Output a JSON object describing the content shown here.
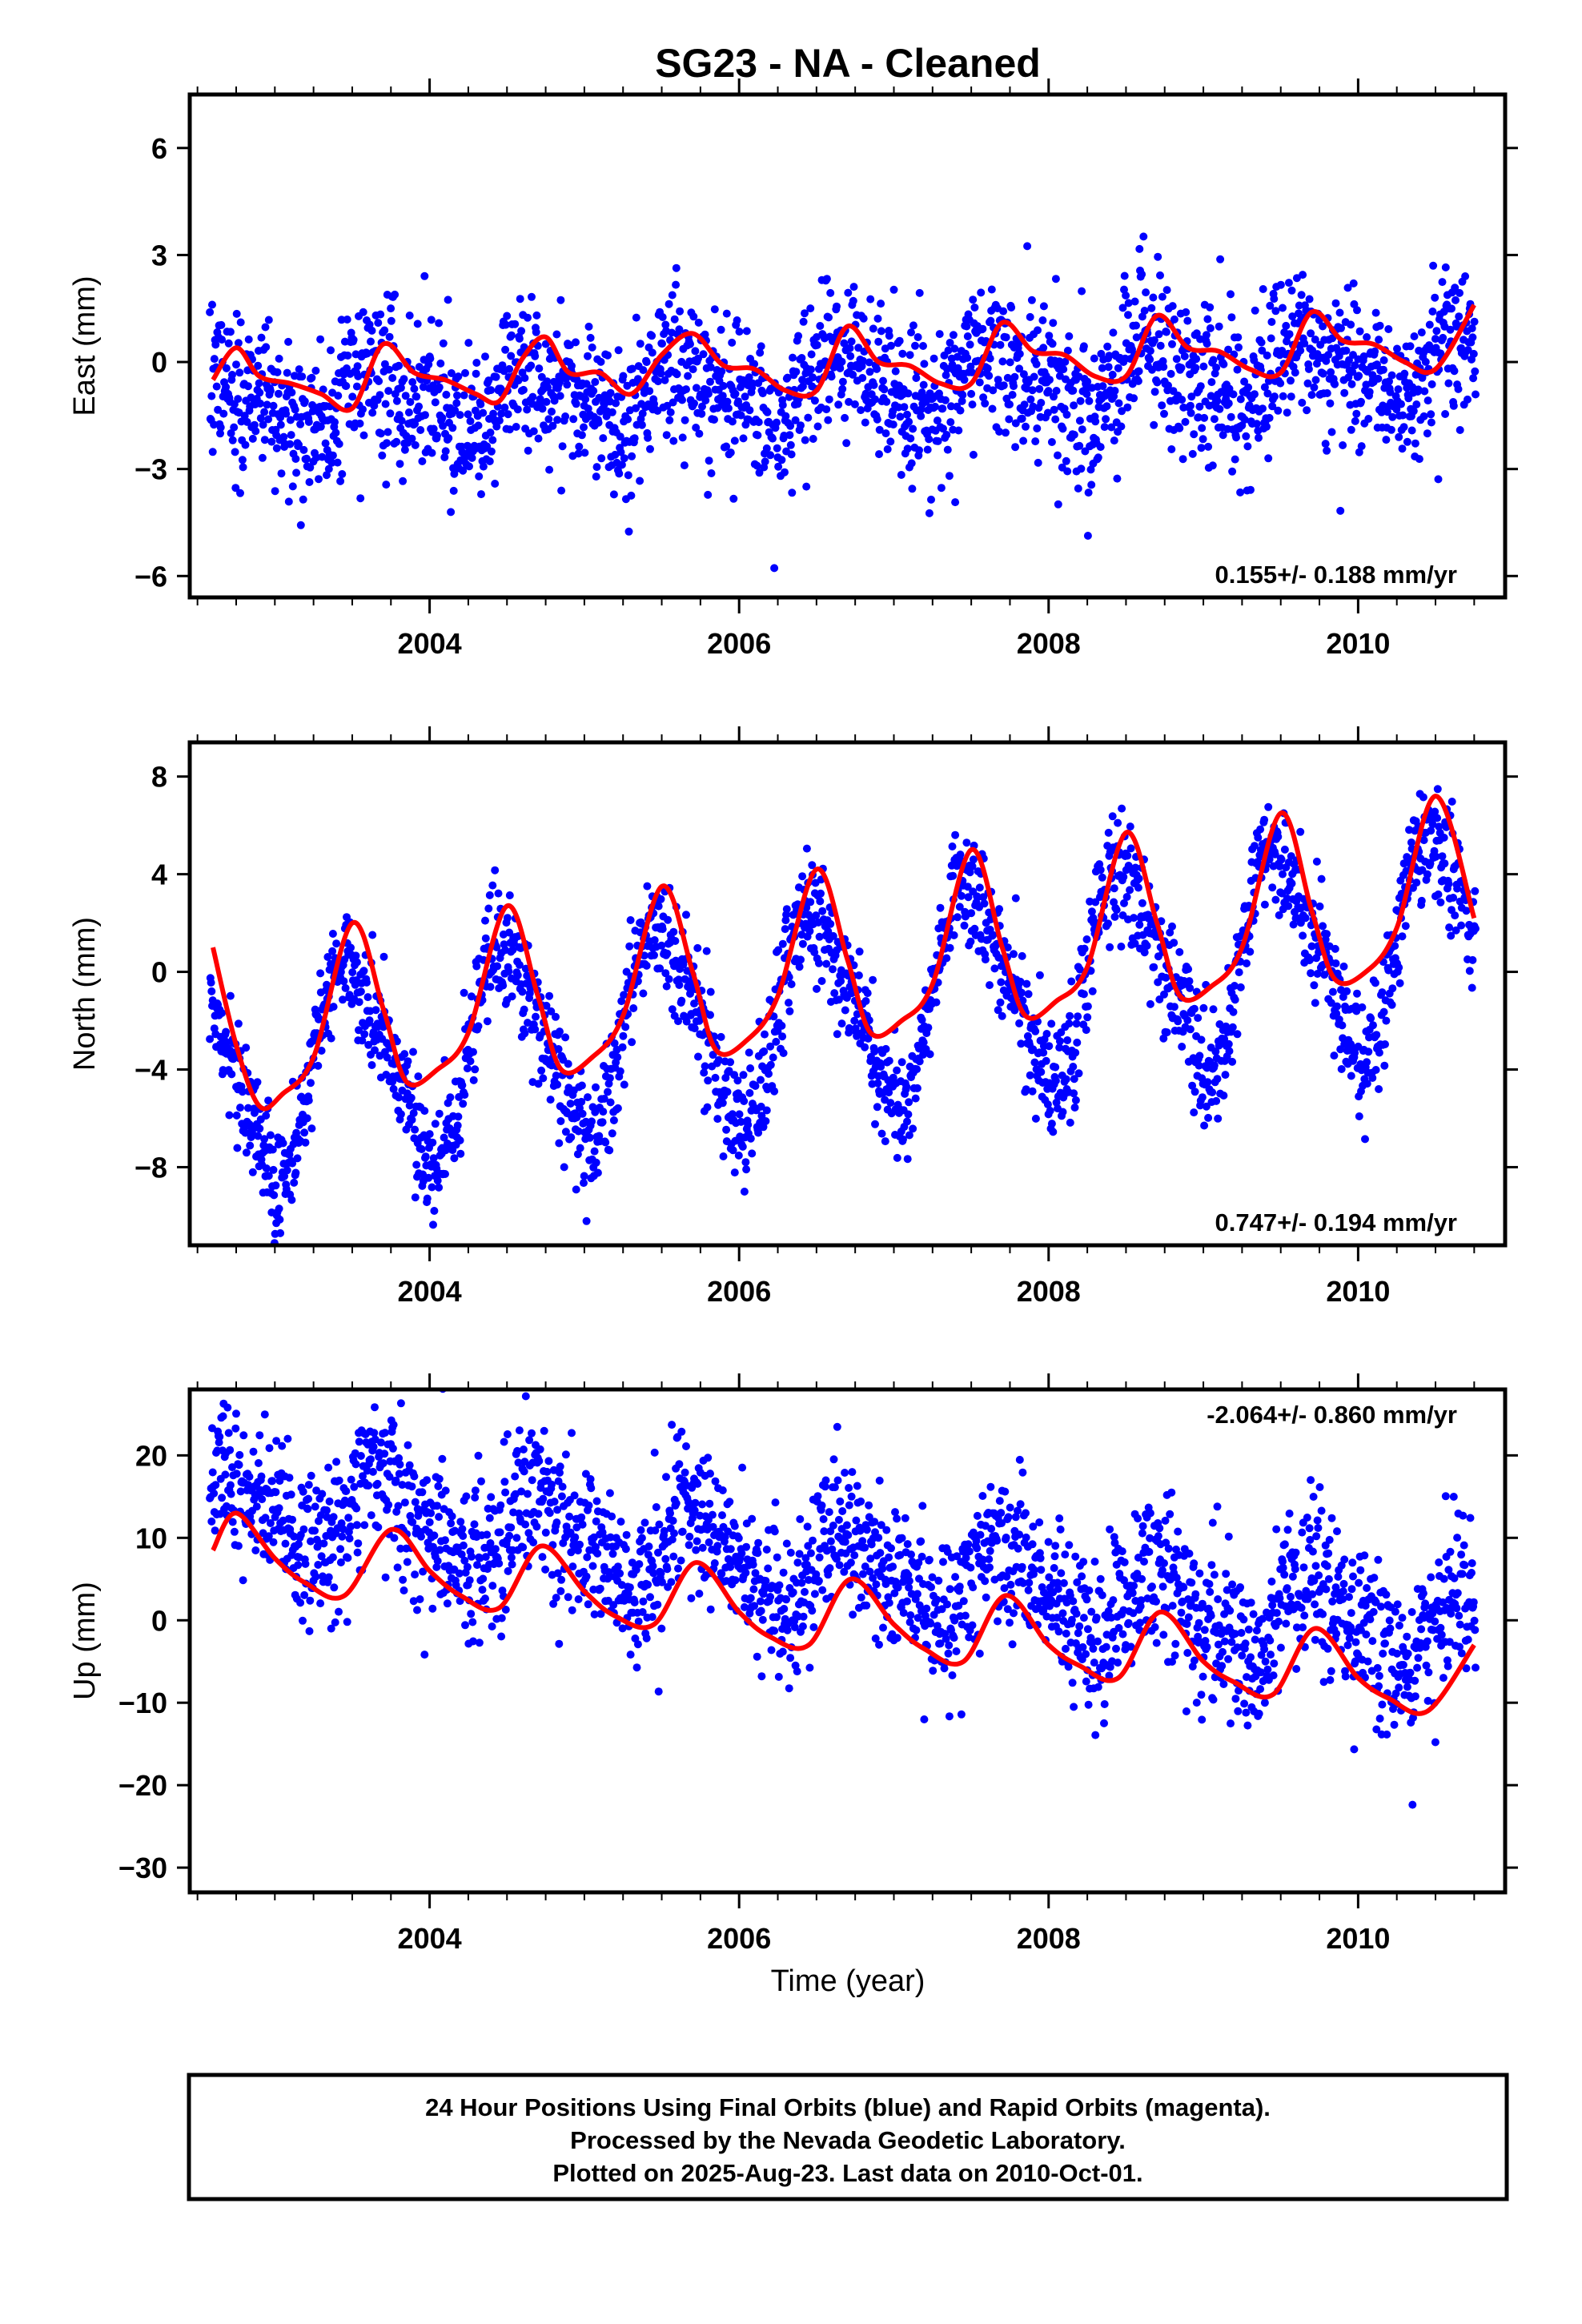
{
  "chart_data": {
    "title": "SG23  - NA - Cleaned",
    "xlabel": "Time (year)",
    "x_ticks": [
      "2004",
      "2006",
      "2008",
      "2010"
    ],
    "xlim": [
      2002.45,
      2010.95
    ],
    "panels": [
      {
        "name": "east",
        "type": "scatter",
        "ylabel": "East (mm)",
        "ylim": [
          -6.6,
          7.5
        ],
        "y_ticks": [
          6,
          3,
          0,
          -3,
          -6
        ],
        "y_tick_labels": [
          "6",
          "3",
          "0",
          "−3",
          "−6"
        ],
        "rate_text": "0.155+/- 0.188 mm/yr",
        "rate_position": "bottom-right",
        "scatter_color": "#0000ff",
        "fit_color": "#ff0000",
        "model": {
          "base": -0.8,
          "trend": 0.155,
          "amp1": 0.75,
          "phase1": 2003.67,
          "amp2": 0.3,
          "phase2": 2003.55,
          "noise": 1.1
        },
        "fit_curve": {
          "x": [
            2002.6,
            2002.75,
            2002.9,
            2003.1,
            2003.3,
            2003.5,
            2003.7,
            2003.9,
            2004.1,
            2004.3,
            2004.45,
            2004.6,
            2004.75,
            2004.9,
            2005.1,
            2005.3,
            2005.5,
            2005.7,
            2005.9,
            2006.1,
            2006.3,
            2006.5,
            2006.7,
            2006.9,
            2007.1,
            2007.3,
            2007.5,
            2007.7,
            2007.9,
            2008.1,
            2008.3,
            2008.5,
            2008.7,
            2008.9,
            2009.1,
            2009.3,
            2009.5,
            2009.7,
            2009.9,
            2010.1,
            2010.3,
            2010.5,
            2010.75
          ],
          "y": [
            -0.5,
            0.4,
            -0.4,
            -0.6,
            -0.9,
            -1.3,
            0.5,
            -0.3,
            -0.5,
            -0.9,
            -1.1,
            0.1,
            0.7,
            -0.3,
            -0.3,
            -0.9,
            0.2,
            0.8,
            -0.1,
            -0.2,
            -0.8,
            -0.8,
            1.0,
            0.0,
            -0.1,
            -0.6,
            -0.6,
            1.1,
            0.3,
            0.2,
            -0.4,
            -0.4,
            1.3,
            0.4,
            0.3,
            -0.2,
            -0.3,
            1.4,
            0.6,
            0.5,
            0.0,
            -0.2,
            1.6
          ]
        }
      },
      {
        "name": "north",
        "type": "scatter",
        "ylabel": "North (mm)",
        "ylim": [
          -11.2,
          9.4
        ],
        "y_ticks": [
          8,
          4,
          0,
          -4,
          -8
        ],
        "y_tick_labels": [
          "8",
          "4",
          "0",
          "−4",
          "−8"
        ],
        "rate_text": "0.747+/- 0.194 mm/yr",
        "rate_position": "bottom-right",
        "scatter_color": "#0000ff",
        "fit_color": "#ff0000",
        "model": {
          "base": -1.9,
          "trend": 0.747,
          "amp1": 4.0,
          "phase1": 2003.5,
          "amp2": 0.8,
          "phase2": 2003.35,
          "noise": 1.2
        },
        "fit_curve": {
          "x": [
            2002.6,
            2002.75,
            2002.9,
            2003.05,
            2003.25,
            2003.5,
            2003.7,
            2003.85,
            2004.05,
            2004.25,
            2004.5,
            2004.7,
            2004.85,
            2005.05,
            2005.25,
            2005.5,
            2005.7,
            2005.85,
            2006.05,
            2006.25,
            2006.5,
            2006.7,
            2006.85,
            2007.05,
            2007.25,
            2007.5,
            2007.7,
            2007.85,
            2008.05,
            2008.25,
            2008.5,
            2008.7,
            2008.85,
            2009.05,
            2009.25,
            2009.5,
            2009.7,
            2009.85,
            2010.05,
            2010.25,
            2010.5,
            2010.75
          ],
          "y": [
            1.0,
            -3.0,
            -5.5,
            -5.0,
            -3.5,
            2.0,
            -1.5,
            -4.5,
            -4.0,
            -2.5,
            2.7,
            -1.0,
            -4.0,
            -3.5,
            -1.8,
            3.5,
            0.0,
            -3.2,
            -2.8,
            -1.0,
            4.2,
            0.5,
            -2.5,
            -2.0,
            -0.5,
            5.0,
            1.0,
            -1.8,
            -1.2,
            0.2,
            5.7,
            2.0,
            -1.0,
            -0.6,
            1.0,
            6.5,
            2.5,
            -0.3,
            0.0,
            1.8,
            7.2,
            2.2
          ]
        }
      },
      {
        "name": "up",
        "type": "scatter",
        "ylabel": "Up (mm)",
        "ylim": [
          -33,
          28
        ],
        "y_ticks": [
          20,
          10,
          0,
          -10,
          -20,
          -30
        ],
        "y_tick_labels": [
          "20",
          "10",
          "0",
          "−10",
          "−20",
          "−30"
        ],
        "rate_text": "-2.064+/- 0.860 mm/yr",
        "rate_position": "top-right",
        "scatter_color": "#0000ff",
        "fit_color": "#ff0000",
        "model": {
          "base": 7.5,
          "trend": -2.064,
          "amp1": 4.5,
          "phase1": 2003.72,
          "amp2": 1.5,
          "phase2": 2003.6,
          "noise": 4.8
        },
        "fit_curve": {
          "x": [
            2002.6,
            2002.75,
            2003.0,
            2003.2,
            2003.45,
            2003.75,
            2004.0,
            2004.2,
            2004.45,
            2004.72,
            2005.0,
            2005.2,
            2005.45,
            2005.72,
            2006.0,
            2006.2,
            2006.45,
            2006.72,
            2007.0,
            2007.2,
            2007.45,
            2007.72,
            2008.0,
            2008.2,
            2008.45,
            2008.72,
            2009.0,
            2009.2,
            2009.45,
            2009.72,
            2010.0,
            2010.2,
            2010.45,
            2010.75
          ],
          "y": [
            8.5,
            13.0,
            7.5,
            4.5,
            3.0,
            11.0,
            6.0,
            3.0,
            1.5,
            9.0,
            3.5,
            0.5,
            -0.5,
            7.0,
            1.0,
            -2.0,
            -3.0,
            5.0,
            -0.5,
            -3.5,
            -5.0,
            3.0,
            -3.0,
            -5.5,
            -7.0,
            1.0,
            -5.0,
            -7.5,
            -9.0,
            -1.0,
            -7.0,
            -9.5,
            -11.0,
            -3.0
          ]
        }
      }
    ]
  },
  "footer": {
    "line1": "24 Hour Positions Using Final Orbits (blue) and Rapid Orbits (magenta).",
    "line2": "Processed by the Nevada Geodetic Laboratory.",
    "line3": "Plotted on 2025-Aug-23. Last data on 2010-Oct-01."
  }
}
